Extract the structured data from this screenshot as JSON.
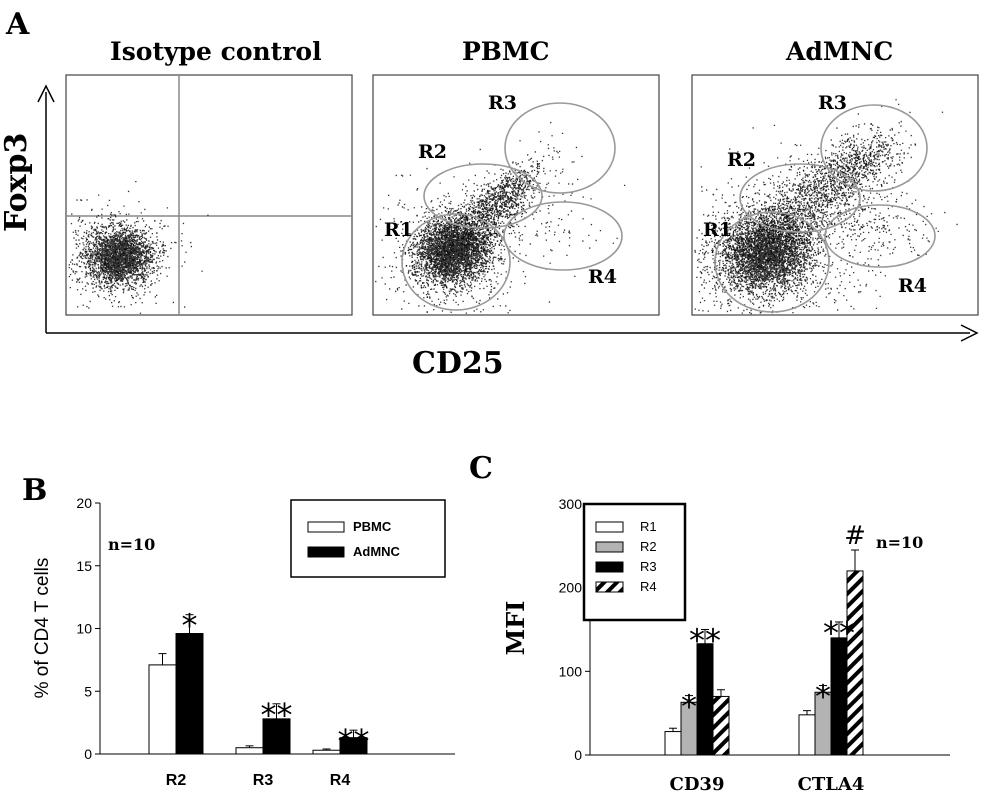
{
  "panel_a": {
    "letter": "A",
    "plots": [
      {
        "title": "Isotype control",
        "gates": []
      },
      {
        "title": "PBMC",
        "gates": [
          "R1",
          "R2",
          "R3",
          "R4"
        ]
      },
      {
        "title": "AdMNC",
        "gates": [
          "R1",
          "R2",
          "R3",
          "R4"
        ]
      }
    ],
    "y_label": "Foxp3",
    "x_label": "CD25"
  },
  "chart_data": [
    {
      "type": "bar",
      "panel": "B",
      "categories": [
        "R2",
        "R3",
        "R4"
      ],
      "series": [
        {
          "name": "PBMC",
          "values": [
            7.1,
            0.5,
            0.3
          ],
          "errors": [
            0.9,
            0.15,
            0.1
          ],
          "fill": "#ffffff"
        },
        {
          "name": "AdMNC",
          "values": [
            9.6,
            2.8,
            1.3
          ],
          "errors": [
            1.5,
            1.2,
            0.6
          ],
          "fill": "#000000"
        }
      ],
      "ylabel": "% of CD4 T cells",
      "ylim": [
        0,
        20
      ],
      "yticks": [
        0,
        5,
        10,
        15,
        20
      ],
      "annotation": "n=10",
      "significance": [
        {
          "category": 0,
          "series": 1,
          "label": "*"
        },
        {
          "category": 1,
          "series": 1,
          "label": "**"
        },
        {
          "category": 2,
          "series": 1,
          "label": "**"
        }
      ],
      "legend_position": "top-right",
      "grid": false
    },
    {
      "type": "bar",
      "panel": "C",
      "categories": [
        "CD39",
        "CTLA4"
      ],
      "series": [
        {
          "name": "R1",
          "values": [
            28,
            48
          ],
          "errors": [
            4,
            5
          ],
          "fill": "#ffffff"
        },
        {
          "name": "R2",
          "values": [
            63,
            75
          ],
          "errors": [
            8,
            8
          ],
          "fill": "#b3b3b3"
        },
        {
          "name": "R3",
          "values": [
            133,
            140
          ],
          "errors": [
            17,
            19
          ],
          "fill": "#000000"
        },
        {
          "name": "R4",
          "values": [
            70,
            220
          ],
          "errors": [
            8,
            25
          ],
          "fill": "hatch"
        }
      ],
      "ylabel": "MFI",
      "ylim": [
        0,
        300
      ],
      "yticks": [
        0,
        100,
        200,
        300
      ],
      "annotation": "n=10",
      "significance": [
        {
          "category": 0,
          "series": 1,
          "label": "*"
        },
        {
          "category": 0,
          "series": 2,
          "label": "**"
        },
        {
          "category": 1,
          "series": 1,
          "label": "*"
        },
        {
          "category": 1,
          "series": 2,
          "label": "**"
        },
        {
          "category": 1,
          "series": 3,
          "label": "#"
        }
      ],
      "legend_position": "top-left",
      "grid": false
    }
  ]
}
